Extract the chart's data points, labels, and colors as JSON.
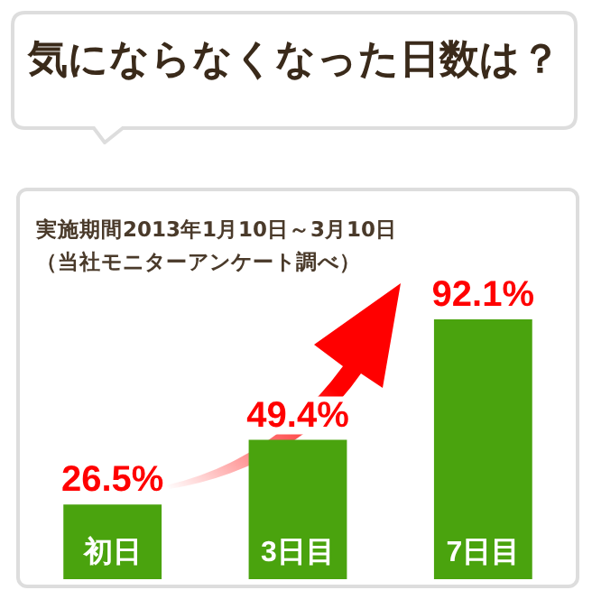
{
  "chart_data": {
    "type": "bar",
    "title": "気にならなくなった日数は？",
    "annotations": [
      "実施期間2013年1月10日～3月10日",
      "（当社モニターアンケート調べ）"
    ],
    "categories": [
      "初日",
      "3日目",
      "7日目"
    ],
    "values": [
      26.5,
      49.4,
      92.1
    ],
    "value_labels": [
      "26.5%",
      "49.4%",
      "92.1%"
    ],
    "color": "#4aa30e",
    "grid": false,
    "legend": false
  }
}
